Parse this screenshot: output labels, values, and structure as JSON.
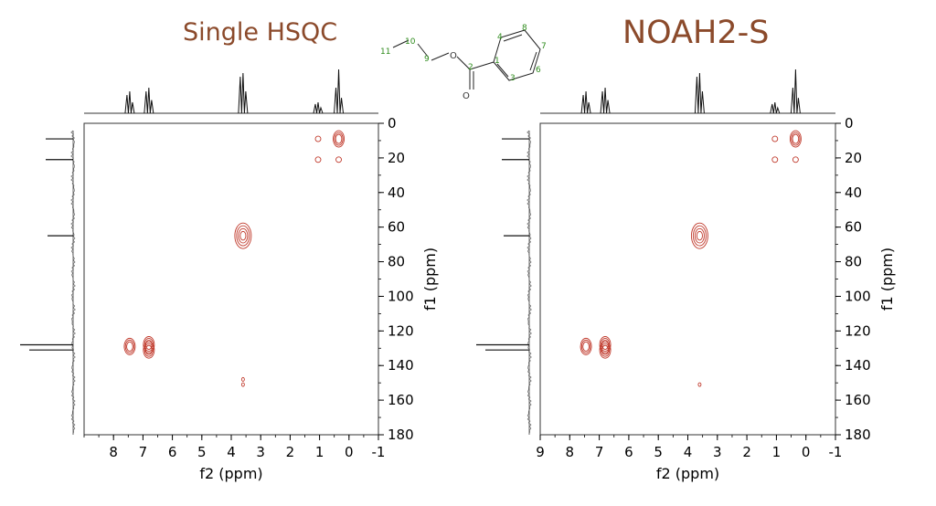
{
  "titles": {
    "left": "Single HSQC",
    "right": "NOAH2-S"
  },
  "colors": {
    "title": "#8B4A2B",
    "contour": "#c0392b",
    "axis": "#000000",
    "atom_label": "#2e8b1c"
  },
  "molecule": {
    "atom_labels": [
      "11",
      "10",
      "9",
      "2",
      "1",
      "3",
      "4",
      "5",
      "6",
      "7",
      "8"
    ],
    "oxygen_labels": [
      "O",
      "O"
    ]
  },
  "chart_data": [
    {
      "type": "heatmap",
      "title": "Single HSQC",
      "xlabel": "f2 (ppm)",
      "ylabel": "f1 (ppm)",
      "xlim": [
        9,
        -1
      ],
      "ylim": [
        0,
        180
      ],
      "x_ticks": [
        "8",
        "7",
        "6",
        "5",
        "4",
        "3",
        "2",
        "1",
        "0",
        "-1"
      ],
      "y_ticks": [
        "0",
        "20",
        "40",
        "60",
        "80",
        "100",
        "120",
        "140",
        "160",
        "180"
      ],
      "cross_peaks": [
        {
          "x": 0.35,
          "y": 9,
          "size": "medium"
        },
        {
          "x": 1.05,
          "y": 9,
          "size": "small"
        },
        {
          "x": 1.05,
          "y": 21,
          "size": "small"
        },
        {
          "x": 0.35,
          "y": 21,
          "size": "small"
        },
        {
          "x": 3.6,
          "y": 65,
          "size": "large"
        },
        {
          "x": 7.45,
          "y": 129,
          "size": "medium"
        },
        {
          "x": 6.8,
          "y": 128,
          "size": "medium"
        },
        {
          "x": 6.8,
          "y": 131,
          "size": "medium"
        },
        {
          "x": 3.6,
          "y": 148,
          "size": "tiny"
        },
        {
          "x": 3.6,
          "y": 151,
          "size": "tiny"
        }
      ],
      "projection_1h_peaks_ppm": [
        7.45,
        6.8,
        3.6,
        1.05,
        0.35
      ],
      "projection_13c_peaks_ppm": [
        9,
        21,
        65,
        128,
        131
      ]
    },
    {
      "type": "heatmap",
      "title": "NOAH2-S",
      "xlabel": "f2 (ppm)",
      "ylabel": "f1 (ppm)",
      "xlim": [
        9,
        -1
      ],
      "ylim": [
        0,
        180
      ],
      "x_ticks": [
        "9",
        "8",
        "7",
        "6",
        "5",
        "4",
        "3",
        "2",
        "1",
        "0",
        "-1"
      ],
      "y_ticks": [
        "0",
        "20",
        "40",
        "60",
        "80",
        "100",
        "120",
        "140",
        "160",
        "180"
      ],
      "cross_peaks": [
        {
          "x": 0.35,
          "y": 9,
          "size": "medium"
        },
        {
          "x": 1.05,
          "y": 9,
          "size": "small"
        },
        {
          "x": 1.05,
          "y": 21,
          "size": "small"
        },
        {
          "x": 0.35,
          "y": 21,
          "size": "small"
        },
        {
          "x": 3.6,
          "y": 65,
          "size": "large"
        },
        {
          "x": 7.45,
          "y": 129,
          "size": "medium"
        },
        {
          "x": 6.8,
          "y": 128,
          "size": "medium"
        },
        {
          "x": 6.8,
          "y": 131,
          "size": "medium"
        },
        {
          "x": 3.6,
          "y": 151,
          "size": "tiny"
        }
      ],
      "projection_1h_peaks_ppm": [
        7.45,
        6.8,
        3.6,
        1.05,
        0.35
      ],
      "projection_13c_peaks_ppm": [
        9,
        21,
        65,
        128,
        131
      ]
    }
  ]
}
